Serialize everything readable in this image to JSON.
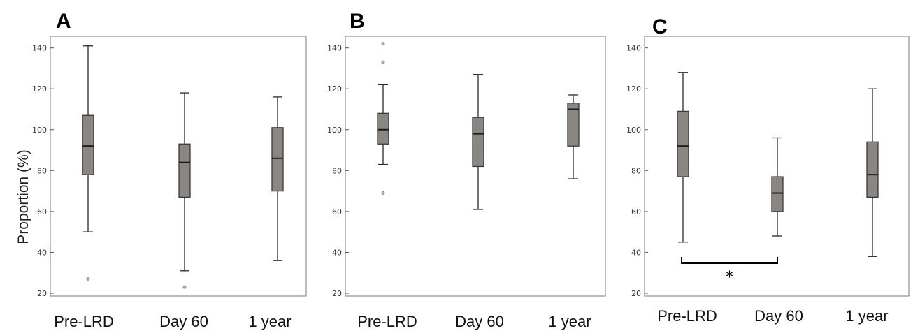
{
  "chart_data": [
    {
      "type": "box",
      "panel_label": "A",
      "ylabel": "Proportion (%)",
      "ylim": [
        20,
        145
      ],
      "yticks": [
        20,
        40,
        60,
        80,
        100,
        120,
        140
      ],
      "categories": [
        "Pre-LRD",
        "Day 60",
        "1 year"
      ],
      "boxes": [
        {
          "whisker_low": 50,
          "q1": 78,
          "median": 92,
          "q3": 107,
          "whisker_high": 141,
          "outliers": [
            27
          ]
        },
        {
          "whisker_low": 31,
          "q1": 67,
          "median": 84,
          "q3": 93,
          "whisker_high": 118,
          "outliers": [
            23
          ]
        },
        {
          "whisker_low": 36,
          "q1": 70,
          "median": 86,
          "q3": 101,
          "whisker_high": 116,
          "outliers": []
        }
      ]
    },
    {
      "type": "box",
      "panel_label": "B",
      "ylabel": "",
      "ylim": [
        20,
        145
      ],
      "yticks": [
        20,
        40,
        60,
        80,
        100,
        120,
        140
      ],
      "categories": [
        "Pre-LRD",
        "Day 60",
        "1 year"
      ],
      "boxes": [
        {
          "whisker_low": 83,
          "q1": 93,
          "median": 100,
          "q3": 108,
          "whisker_high": 122,
          "outliers": [
            69,
            133,
            142
          ]
        },
        {
          "whisker_low": 61,
          "q1": 82,
          "median": 98,
          "q3": 106,
          "whisker_high": 127,
          "outliers": []
        },
        {
          "whisker_low": 76,
          "q1": 92,
          "median": 110,
          "q3": 113,
          "whisker_high": 117,
          "outliers": []
        }
      ]
    },
    {
      "type": "box",
      "panel_label": "C",
      "ylabel": "",
      "ylim": [
        20,
        145
      ],
      "yticks": [
        20,
        40,
        60,
        80,
        100,
        120,
        140
      ],
      "categories": [
        "Pre-LRD",
        "Day 60",
        "1 year"
      ],
      "boxes": [
        {
          "whisker_low": 45,
          "q1": 77,
          "median": 92,
          "q3": 109,
          "whisker_high": 128,
          "outliers": []
        },
        {
          "whisker_low": 48,
          "q1": 60,
          "median": 69,
          "q3": 77,
          "whisker_high": 96,
          "outliers": []
        },
        {
          "whisker_low": 38,
          "q1": 67,
          "median": 78,
          "q3": 94,
          "whisker_high": 120,
          "outliers": []
        }
      ],
      "significance": {
        "from": "Pre-LRD",
        "to": "Day 60",
        "label": "*"
      }
    }
  ]
}
